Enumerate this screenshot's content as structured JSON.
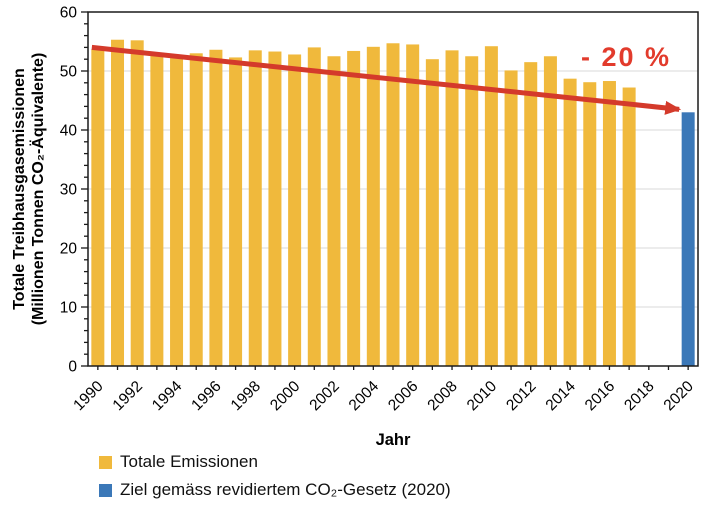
{
  "window": {
    "background": "#ffffff"
  },
  "chart_data": {
    "type": "bar",
    "title": "",
    "xlabel": "Jahr",
    "ylabel": "Totale Treibhausgasemissionen (Millionen Tonnen CO₂-Äquivalente)",
    "ylabel_line1": "Totale Treibhausgasemissionen",
    "ylabel_line2": "(Millionen Tonnen CO₂-Äquivalente)",
    "ylim": [
      0,
      60
    ],
    "y_major_ticks": [
      0,
      10,
      20,
      30,
      40,
      50,
      60
    ],
    "y_minor_step": 2,
    "x_years": [
      1990,
      1991,
      1992,
      1993,
      1994,
      1995,
      1996,
      1997,
      1998,
      1999,
      2000,
      2001,
      2002,
      2003,
      2004,
      2005,
      2006,
      2007,
      2008,
      2009,
      2010,
      2011,
      2012,
      2013,
      2014,
      2015,
      2016,
      2017,
      2018,
      2019,
      2020
    ],
    "x_label_every": 2,
    "grid": "horizontal major gridlines, light gray",
    "legend_position": "bottom-left",
    "colors": {
      "axis": "#1a1a1a",
      "grid": "#d9d9d9"
    },
    "series": [
      {
        "name": "Totale Emissionen",
        "color": "#F0B93C",
        "points": [
          {
            "year": 1990,
            "value": 53.7
          },
          {
            "year": 1991,
            "value": 55.3
          },
          {
            "year": 1992,
            "value": 55.2
          },
          {
            "year": 1993,
            "value": 52.9
          },
          {
            "year": 1994,
            "value": 52.2
          },
          {
            "year": 1995,
            "value": 53.0
          },
          {
            "year": 1996,
            "value": 53.6
          },
          {
            "year": 1997,
            "value": 52.3
          },
          {
            "year": 1998,
            "value": 53.5
          },
          {
            "year": 1999,
            "value": 53.3
          },
          {
            "year": 2000,
            "value": 52.8
          },
          {
            "year": 2001,
            "value": 54.0
          },
          {
            "year": 2002,
            "value": 52.5
          },
          {
            "year": 2003,
            "value": 53.4
          },
          {
            "year": 2004,
            "value": 54.1
          },
          {
            "year": 2005,
            "value": 54.7
          },
          {
            "year": 2006,
            "value": 54.5
          },
          {
            "year": 2007,
            "value": 52.0
          },
          {
            "year": 2008,
            "value": 53.5
          },
          {
            "year": 2009,
            "value": 52.5
          },
          {
            "year": 2010,
            "value": 54.2
          },
          {
            "year": 2011,
            "value": 50.1
          },
          {
            "year": 2012,
            "value": 51.5
          },
          {
            "year": 2013,
            "value": 52.5
          },
          {
            "year": 2014,
            "value": 48.7
          },
          {
            "year": 2015,
            "value": 48.1
          },
          {
            "year": 2016,
            "value": 48.3
          },
          {
            "year": 2017,
            "value": 47.2
          }
        ]
      },
      {
        "name": "Ziel gemäss revidiertem CO₂-Gesetz (2020)",
        "color": "#3B78B8",
        "points": [
          {
            "year": 2020,
            "value": 43.0
          }
        ]
      }
    ],
    "annotation": {
      "label": "- 20 %",
      "label_color": "#E23B2C",
      "arrow_color": "#D43A2B",
      "arrow": {
        "from_year": 1990,
        "from_value": 54.0,
        "to_year": 2020,
        "to_value": 43.5
      }
    }
  }
}
